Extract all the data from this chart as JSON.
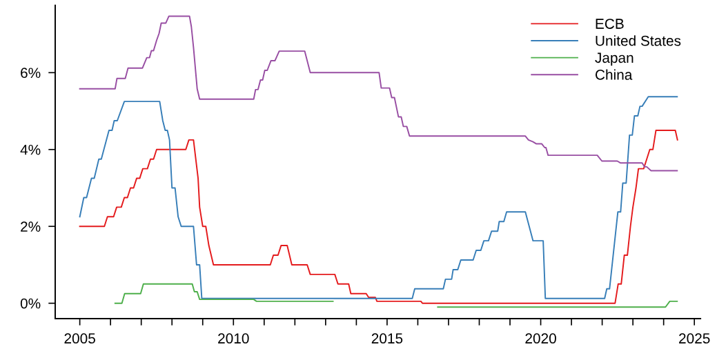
{
  "chart_data": {
    "type": "line",
    "xlim": [
      2004.2,
      2025.2
    ],
    "ylim": [
      -0.4,
      7.75
    ],
    "xticks": [
      2005,
      {
        "value": 2006,
        "label": null
      },
      {
        "value": 2007,
        "label": null
      },
      {
        "value": 2008,
        "label": null
      },
      {
        "value": 2009,
        "label": null
      },
      2010,
      {
        "value": 2011,
        "label": null
      },
      {
        "value": 2012,
        "label": null
      },
      {
        "value": 2013,
        "label": null
      },
      {
        "value": 2014,
        "label": null
      },
      2015,
      {
        "value": 2016,
        "label": null
      },
      {
        "value": 2017,
        "label": null
      },
      {
        "value": 2018,
        "label": null
      },
      {
        "value": 2019,
        "label": null
      },
      2020,
      {
        "value": 2021,
        "label": null
      },
      {
        "value": 2022,
        "label": null
      },
      {
        "value": 2023,
        "label": null
      },
      {
        "value": 2024,
        "label": null
      },
      2025
    ],
    "yticks": [
      {
        "value": 0,
        "label": "0%"
      },
      {
        "value": 2,
        "label": "2%"
      },
      {
        "value": 4,
        "label": "4%"
      },
      {
        "value": 6,
        "label": "6%"
      }
    ],
    "grid": false,
    "legend": "top right",
    "marker": "none",
    "line_style": "solid",
    "series": [
      {
        "name": "ECB",
        "color": "#e41a1c",
        "x": [
          2005.0,
          2005.8,
          2005.9,
          2006.1,
          2006.2,
          2006.35,
          2006.45,
          2006.55,
          2006.65,
          2006.75,
          2006.85,
          2006.95,
          2007.05,
          2007.2,
          2007.3,
          2007.4,
          2007.5,
          2008.45,
          2008.55,
          2008.7,
          2008.85,
          2008.9,
          2009.0,
          2009.1,
          2009.2,
          2009.35,
          2011.2,
          2011.3,
          2011.45,
          2011.55,
          2011.75,
          2011.9,
          2012.4,
          2012.5,
          2013.3,
          2013.4,
          2013.75,
          2013.82,
          2014.32,
          2014.4,
          2014.62,
          2014.67,
          2016.1,
          2016.15,
          2022.42,
          2022.52,
          2022.62,
          2022.72,
          2022.82,
          2022.92,
          2023.0,
          2023.1,
          2023.18,
          2023.35,
          2023.45,
          2023.55,
          2023.65,
          2023.75,
          2024.38,
          2024.45
        ],
        "values": [
          2.0,
          2.0,
          2.25,
          2.25,
          2.5,
          2.5,
          2.75,
          2.75,
          3.0,
          3.0,
          3.25,
          3.25,
          3.5,
          3.5,
          3.75,
          3.75,
          4.0,
          4.0,
          4.25,
          4.25,
          3.25,
          2.5,
          2.0,
          2.0,
          1.5,
          1.0,
          1.0,
          1.25,
          1.25,
          1.5,
          1.5,
          1.0,
          1.0,
          0.75,
          0.75,
          0.5,
          0.5,
          0.25,
          0.25,
          0.15,
          0.15,
          0.05,
          0.05,
          0.0,
          0.0,
          0.5,
          0.5,
          1.25,
          1.25,
          2.0,
          2.5,
          3.0,
          3.5,
          3.5,
          3.75,
          4.0,
          4.0,
          4.5,
          4.5,
          4.25
        ]
      },
      {
        "name": "United States",
        "color": "#377eb8",
        "x": [
          2005.0,
          2005.13,
          2005.22,
          2005.38,
          2005.47,
          2005.62,
          2005.7,
          2005.95,
          2006.05,
          2006.12,
          2006.22,
          2006.45,
          2007.6,
          2007.7,
          2007.78,
          2007.85,
          2007.92,
          2008.0,
          2008.1,
          2008.2,
          2008.3,
          2008.7,
          2008.8,
          2008.9,
          2008.97,
          2015.82,
          2015.9,
          2016.83,
          2016.9,
          2017.1,
          2017.15,
          2017.3,
          2017.4,
          2017.8,
          2017.9,
          2018.05,
          2018.15,
          2018.3,
          2018.4,
          2018.6,
          2018.65,
          2018.8,
          2018.89,
          2019.5,
          2019.75,
          2020.08,
          2020.15,
          2022.08,
          2022.15,
          2022.24,
          2022.51,
          2022.6,
          2022.67,
          2022.78,
          2022.89,
          2022.98,
          2023.05,
          2023.16,
          2023.23,
          2023.3,
          2023.5,
          2024.44
        ],
        "values": [
          2.25,
          2.75,
          2.75,
          3.25,
          3.25,
          3.75,
          3.75,
          4.5,
          4.5,
          4.75,
          4.75,
          5.25,
          5.25,
          4.75,
          4.5,
          4.5,
          4.25,
          3.0,
          3.0,
          2.25,
          2.0,
          2.0,
          1.0,
          1.0,
          0.125,
          0.125,
          0.375,
          0.375,
          0.625,
          0.625,
          0.875,
          0.875,
          1.125,
          1.125,
          1.375,
          1.375,
          1.625,
          1.625,
          1.875,
          1.875,
          2.125,
          2.125,
          2.375,
          2.375,
          1.625,
          1.625,
          0.125,
          0.125,
          0.375,
          0.375,
          2.375,
          2.375,
          3.125,
          3.125,
          4.375,
          4.375,
          4.875,
          4.875,
          5.125,
          5.125,
          5.375,
          5.375
        ]
      },
      {
        "name": "Japan",
        "color": "#4daf4a",
        "x": [
          2006.15,
          2006.37,
          2006.46,
          2006.98,
          2007.07,
          2008.66,
          2008.73,
          2008.82,
          2008.9,
          2010.66,
          2010.75,
          2013.24,
          2015.0,
          2016.65,
          2024.06,
          2024.2,
          2024.44
        ],
        "values": [
          0.0,
          0.0,
          0.25,
          0.25,
          0.5,
          0.5,
          0.3,
          0.3,
          0.1,
          0.1,
          0.05,
          0.05,
          null,
          -0.1,
          -0.1,
          0.05,
          0.05
        ]
      },
      {
        "name": "China",
        "color": "#984ea3",
        "x": [
          2005.0,
          2006.15,
          2006.21,
          2006.48,
          2006.57,
          2007.04,
          2007.18,
          2007.27,
          2007.33,
          2007.4,
          2007.5,
          2007.58,
          2007.65,
          2007.8,
          2007.9,
          2008.57,
          2008.63,
          2008.7,
          2008.82,
          2008.9,
          2010.66,
          2010.72,
          2010.8,
          2010.88,
          2010.95,
          2011.02,
          2011.1,
          2011.22,
          2011.35,
          2011.49,
          2012.32,
          2012.4,
          2012.5,
          2014.74,
          2014.81,
          2015.08,
          2015.15,
          2015.24,
          2015.37,
          2015.46,
          2015.53,
          2015.64,
          2015.73,
          2019.5,
          2019.6,
          2019.75,
          2019.85,
          2020.03,
          2020.13,
          2020.17,
          2020.24,
          2021.84,
          2021.99,
          2022.49,
          2022.6,
          2023.3,
          2023.38,
          2023.45,
          2023.59,
          2024.44
        ],
        "values": [
          5.58,
          5.58,
          5.85,
          5.85,
          6.12,
          6.12,
          6.39,
          6.39,
          6.57,
          6.57,
          6.84,
          7.02,
          7.29,
          7.29,
          7.47,
          7.47,
          7.2,
          6.66,
          5.58,
          5.31,
          5.31,
          5.56,
          5.56,
          5.81,
          5.81,
          6.06,
          6.06,
          6.31,
          6.31,
          6.56,
          6.56,
          6.31,
          6.0,
          6.0,
          5.6,
          5.6,
          5.35,
          5.35,
          4.85,
          4.85,
          4.6,
          4.6,
          4.35,
          4.35,
          4.25,
          4.2,
          4.15,
          4.15,
          4.05,
          4.05,
          3.85,
          3.85,
          3.7,
          3.7,
          3.65,
          3.65,
          3.55,
          3.55,
          3.45,
          3.45
        ]
      }
    ]
  }
}
